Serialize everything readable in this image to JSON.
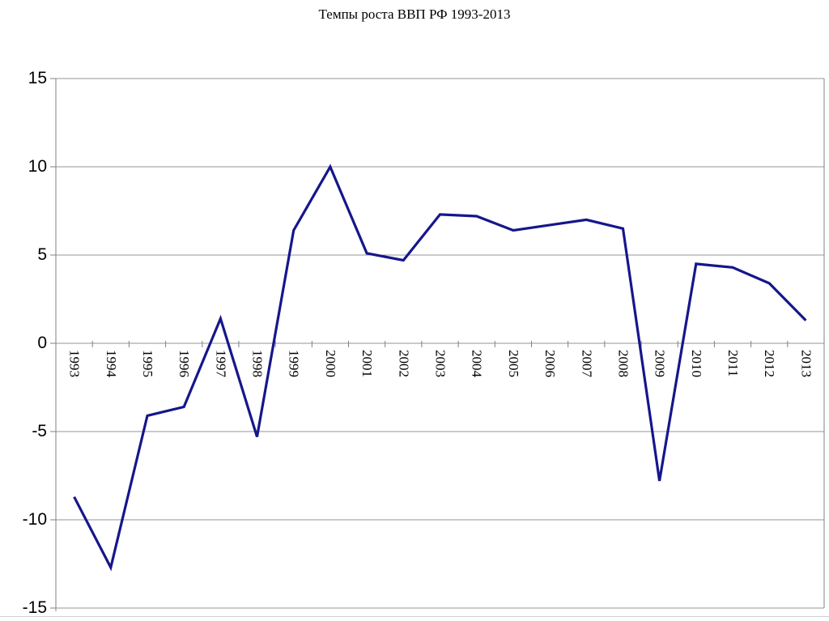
{
  "page": {
    "bottom_border_color": "#cfcfcf"
  },
  "chart_data": {
    "type": "line",
    "title": "Темпы роста ВВП РФ 1993-2013",
    "categories": [
      "1993",
      "1994",
      "1995",
      "1996",
      "1997",
      "1998",
      "1999",
      "2000",
      "2001",
      "2002",
      "2003",
      "2004",
      "2005",
      "2006",
      "2007",
      "2008",
      "2009",
      "2010",
      "2011",
      "2012",
      "2013"
    ],
    "values": [
      -8.7,
      -12.7,
      -4.1,
      -3.6,
      1.4,
      -5.3,
      6.4,
      10.0,
      5.1,
      4.7,
      7.3,
      7.2,
      6.4,
      6.7,
      7.0,
      6.5,
      -7.8,
      4.5,
      4.3,
      3.4,
      1.3
    ],
    "xlabel": "",
    "ylabel": "",
    "ylim": [
      -15,
      15
    ],
    "yticks": [
      15,
      10,
      5,
      0,
      -5,
      -10,
      -15
    ],
    "grid": true,
    "legend": "none",
    "line_color": "#16168c",
    "grid_color": "#969696",
    "axis_color": "#808080",
    "text_color": "#000000"
  }
}
